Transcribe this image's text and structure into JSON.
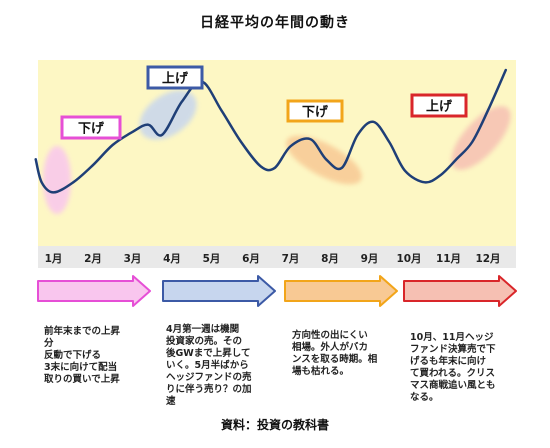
{
  "title": "日経平均の年間の動き",
  "source": "資料：投資の教科書",
  "colors": {
    "plot_bg": "#fdf7c4",
    "strip_bg": "#e9e9e9",
    "line": "#1f3f77",
    "pink": "#e64fd6",
    "blue": "#3c5aa6",
    "orange": "#f2a51a",
    "red": "#d9262a",
    "pink_fill": "#f9c6ee",
    "blue_fill": "#c7d6ee",
    "orange_fill": "#f8c994",
    "red_fill": "#f6c0b3"
  },
  "callouts": [
    {
      "label": "下げ",
      "color": "pink"
    },
    {
      "label": "上げ",
      "color": "blue"
    },
    {
      "label": "下げ",
      "color": "orange"
    },
    {
      "label": "上げ",
      "color": "red"
    }
  ],
  "notes": [
    {
      "color": "pink",
      "lines": [
        "前年末までの上昇",
        "分",
        "反動で下げる",
        "3末に向けて配当",
        "取りの買いで上昇"
      ]
    },
    {
      "color": "blue",
      "lines": [
        "4月第一週は機関",
        "投資家の売。その",
        "後GWまで上昇して",
        "いく。5月半ばから",
        "ヘッジファンドの売",
        "りに伴う売り？の加",
        "速"
      ]
    },
    {
      "color": "orange",
      "lines": [
        "方向性の出にくい",
        "相場。外人がバカ",
        "ンスを取る時期。相",
        "場も枯れる。"
      ]
    },
    {
      "color": "red",
      "lines": [
        "10月、11月ヘッジ",
        "ファンド決算売で下",
        "げるも年末に向け",
        "て買われる。クリス",
        "マス商戦追い風とも",
        "なる。"
      ]
    }
  ],
  "chart_data": {
    "type": "line",
    "title": "日経平均の年間の動き",
    "xlabel": "",
    "ylabel": "",
    "x_tick_labels": [
      "1月",
      "2月",
      "3月",
      "4月",
      "5月",
      "6月",
      "7月",
      "8月",
      "9月",
      "10月",
      "11月",
      "12月"
    ],
    "grid": false,
    "legend": "none",
    "y_scale": "unlabeled relative level (0 = low, 100 = high)",
    "ylim": [
      0,
      100
    ],
    "series": [
      {
        "x": [
          0.55,
          0.7,
          1,
          1.5,
          2,
          2.5,
          3,
          3.4,
          3.75,
          4.25,
          4.75,
          5.25,
          5.75,
          6.25,
          6.6,
          7,
          7.5,
          7.9,
          8.3,
          8.7,
          9.1,
          9.5,
          9.9,
          10.4,
          10.8,
          11.2,
          11.6,
          12,
          12.45
        ],
        "y": [
          38,
          22,
          15,
          22,
          34,
          48,
          57,
          62,
          55,
          78,
          92,
          72,
          50,
          33,
          32,
          47,
          52,
          38,
          32,
          55,
          64,
          50,
          30,
          22,
          27,
          38,
          50,
          72,
          100
        ]
      }
    ]
  }
}
